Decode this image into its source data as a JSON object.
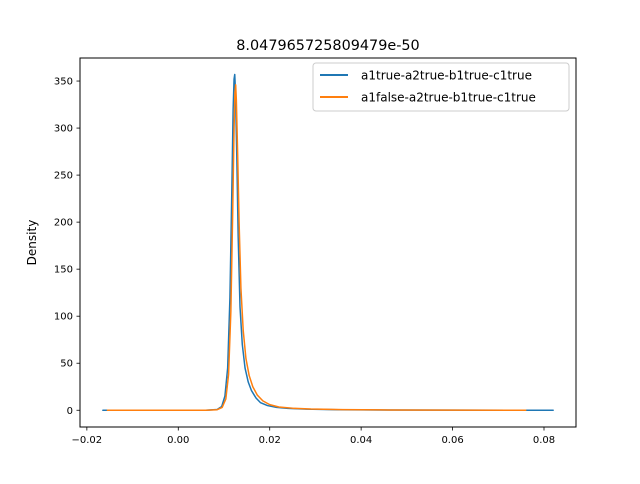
{
  "chart_data": {
    "type": "line",
    "title": "8.047965725809479e-50",
    "xlabel": "",
    "ylabel": "Density",
    "xlim": [
      -0.0215,
      0.087
    ],
    "ylim": [
      -17.8,
      374.5
    ],
    "x_ticks": [
      -0.02,
      0.0,
      0.02,
      0.04,
      0.06,
      0.08
    ],
    "x_tick_labels": [
      "−0.02",
      "0.00",
      "0.02",
      "0.04",
      "0.06",
      "0.08"
    ],
    "y_ticks": [
      0,
      50,
      100,
      150,
      200,
      250,
      300,
      350
    ],
    "y_tick_labels": [
      "0",
      "50",
      "100",
      "150",
      "200",
      "250",
      "300",
      "350"
    ],
    "grid": false,
    "legend_position": "top-right",
    "series": [
      {
        "name": "a1true-a2true-b1true-c1true",
        "color": "#1f77b4",
        "points": [
          [
            -0.0165,
            0
          ],
          [
            -0.005,
            0
          ],
          [
            0.006,
            0
          ],
          [
            0.0085,
            0.8
          ],
          [
            0.0095,
            4
          ],
          [
            0.0102,
            15
          ],
          [
            0.0108,
            45
          ],
          [
            0.0113,
            120
          ],
          [
            0.0117,
            230
          ],
          [
            0.012,
            320
          ],
          [
            0.0122,
            352
          ],
          [
            0.01235,
            357
          ],
          [
            0.0125,
            340
          ],
          [
            0.0128,
            270
          ],
          [
            0.0131,
            185
          ],
          [
            0.0135,
            110
          ],
          [
            0.014,
            70
          ],
          [
            0.0146,
            45
          ],
          [
            0.0153,
            30
          ],
          [
            0.016,
            21
          ],
          [
            0.017,
            13
          ],
          [
            0.018,
            8
          ],
          [
            0.0195,
            5
          ],
          [
            0.0215,
            3
          ],
          [
            0.024,
            2
          ],
          [
            0.028,
            1.2
          ],
          [
            0.035,
            0.6
          ],
          [
            0.045,
            0.3
          ],
          [
            0.06,
            0.1
          ],
          [
            0.082,
            0
          ]
        ]
      },
      {
        "name": "a1false-a2true-b1true-c1true",
        "color": "#ff7f0e",
        "points": [
          [
            -0.0155,
            0
          ],
          [
            -0.005,
            0
          ],
          [
            0.006,
            0
          ],
          [
            0.0085,
            0.6
          ],
          [
            0.0096,
            3
          ],
          [
            0.0104,
            12
          ],
          [
            0.011,
            38
          ],
          [
            0.0115,
            105
          ],
          [
            0.0119,
            210
          ],
          [
            0.0122,
            300
          ],
          [
            0.0124,
            338
          ],
          [
            0.01255,
            346
          ],
          [
            0.0127,
            330
          ],
          [
            0.013,
            270
          ],
          [
            0.0133,
            200
          ],
          [
            0.0137,
            130
          ],
          [
            0.0142,
            85
          ],
          [
            0.0148,
            55
          ],
          [
            0.0155,
            37
          ],
          [
            0.0163,
            25
          ],
          [
            0.0173,
            16
          ],
          [
            0.0185,
            10
          ],
          [
            0.02,
            6
          ],
          [
            0.022,
            3.5
          ],
          [
            0.025,
            2.2
          ],
          [
            0.029,
            1.3
          ],
          [
            0.036,
            0.7
          ],
          [
            0.046,
            0.3
          ],
          [
            0.06,
            0.1
          ],
          [
            0.076,
            0
          ]
        ]
      }
    ]
  }
}
